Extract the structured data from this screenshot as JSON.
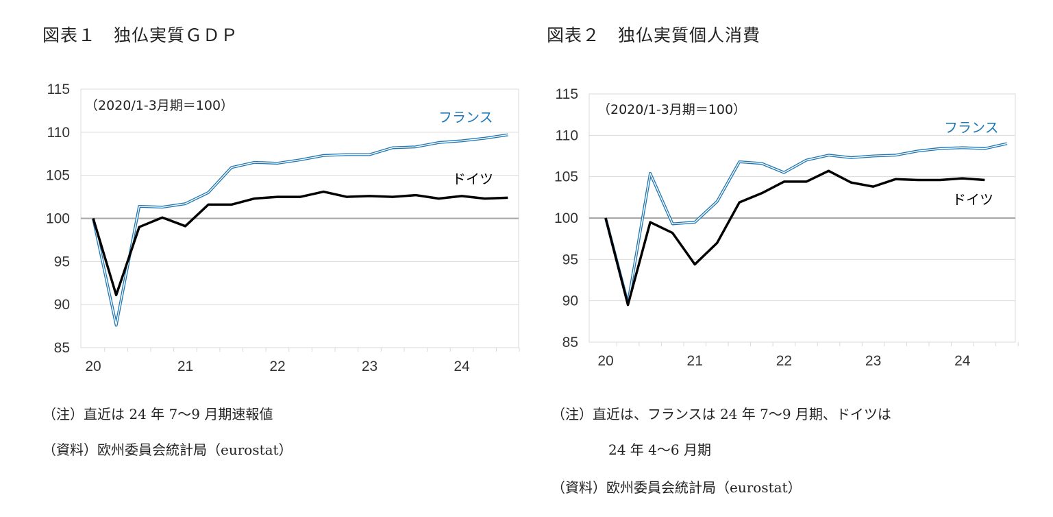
{
  "chart_data": [
    {
      "type": "line",
      "title": "図表１　独仏実質ＧＤＰ",
      "base_note": "（2020/1-3月期＝100）",
      "ylim": [
        85,
        115
      ],
      "yticks": [
        "85",
        "90",
        "95",
        "100",
        "105",
        "110",
        "115"
      ],
      "xticks": [
        "20",
        "21",
        "22",
        "23",
        "24"
      ],
      "grid": true,
      "series": [
        {
          "name": "フランス",
          "color": "#1f77b4",
          "style": "double",
          "values": [
            100,
            87.6,
            101.4,
            101.3,
            101.7,
            103.0,
            105.9,
            106.5,
            106.4,
            106.8,
            107.3,
            107.4,
            107.4,
            108.2,
            108.3,
            108.8,
            109.0,
            109.3,
            109.7
          ]
        },
        {
          "name": "ドイツ",
          "color": "#000000",
          "style": "solid",
          "values": [
            100,
            91.1,
            99.0,
            100.1,
            99.1,
            101.6,
            101.6,
            102.3,
            102.5,
            102.5,
            103.1,
            102.5,
            102.6,
            102.5,
            102.7,
            102.3,
            102.6,
            102.3,
            102.4
          ]
        }
      ],
      "notes": [
        "（注）直近は 24 年 7～9 月期速報値",
        "（資料）欧州委員会統計局（eurostat）"
      ]
    },
    {
      "type": "line",
      "title": "図表２　独仏実質個人消費",
      "base_note": "（2020/1-3月期＝100）",
      "ylim": [
        85,
        115
      ],
      "yticks": [
        "85",
        "90",
        "95",
        "100",
        "105",
        "110",
        "115"
      ],
      "xticks": [
        "20",
        "21",
        "22",
        "23",
        "24"
      ],
      "grid": true,
      "series": [
        {
          "name": "フランス",
          "color": "#1f77b4",
          "style": "double",
          "values": [
            100,
            89.7,
            105.4,
            99.3,
            99.5,
            102.0,
            106.8,
            106.6,
            105.5,
            107.0,
            107.6,
            107.3,
            107.5,
            107.6,
            108.1,
            108.4,
            108.5,
            108.4,
            109.0
          ]
        },
        {
          "name": "ドイツ",
          "color": "#000000",
          "style": "solid",
          "values": [
            100,
            89.5,
            99.5,
            98.2,
            94.4,
            97.0,
            101.9,
            103.0,
            104.4,
            104.4,
            105.7,
            104.3,
            103.8,
            104.7,
            104.6,
            104.6,
            104.8,
            104.6
          ]
        }
      ],
      "notes": [
        "（注）直近は、フランスは 24 年 7～9 月期、ドイツは",
        "24 年 4～6 月期",
        "（資料）欧州委員会統計局（eurostat）"
      ]
    }
  ]
}
